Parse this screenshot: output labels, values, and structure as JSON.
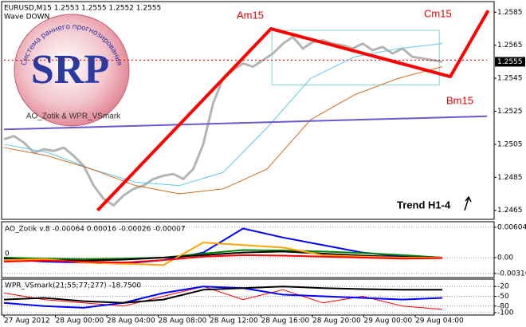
{
  "logo": {
    "title": "SRP",
    "ring_text": "Система раннего прогнозирования",
    "credit": "AO_Zotik & WPR_VSmark"
  },
  "annotations": {
    "a": "Am15",
    "b": "Bm15",
    "c": "Cm15",
    "trend": "Trend H1-4"
  },
  "chart_data": [
    {
      "type": "line",
      "title": "EURUSD,M15  1.2553 1.2555 1.2552 1.2555",
      "subtitle": "Wave DOWN",
      "ylim": [
        1.2461,
        1.259
      ],
      "yticks": [
        1.2585,
        1.2565,
        1.2545,
        1.2525,
        1.2505,
        1.2485,
        1.2465
      ],
      "grid": false,
      "current_price": 1.2555,
      "box": {
        "x": [
          26.9,
          43.7
        ],
        "values": [
          1.2574,
          1.2541
        ],
        "color": "#7fd8d8"
      },
      "series": [
        {
          "color": "#b4b4b4",
          "line_width": 3,
          "values": [
            1.2508,
            1.251,
            1.2506,
            1.25,
            1.2502,
            1.2501,
            1.2503,
            1.2498,
            1.2492,
            1.248,
            1.2472,
            1.2468,
            1.2474,
            1.2478,
            1.248,
            1.2484,
            1.2486,
            1.2487,
            1.2484,
            1.249,
            1.2505,
            1.253,
            1.2545,
            1.255,
            1.2554,
            1.2552,
            1.2556,
            1.256,
            1.2566,
            1.257,
            1.2563,
            1.2567,
            1.2568,
            1.2566,
            1.2565,
            1.2563,
            1.2566,
            1.2562,
            1.2564,
            1.256,
            1.2563,
            1.2558,
            1.2557,
            1.2556,
            1.2555
          ]
        },
        {
          "color": "#5fc8e8",
          "line_width": 1,
          "values": [
            1.2505,
            1.25,
            1.249,
            1.2482,
            1.248,
            1.2488,
            1.2515,
            1.2545,
            1.2558,
            1.2563,
            1.2566
          ]
        },
        {
          "color": "#d2691e",
          "line_width": 1,
          "values": [
            1.2503,
            1.2498,
            1.249,
            1.248,
            1.2475,
            1.2478,
            1.249,
            1.252,
            1.2535,
            1.2545,
            1.2552
          ]
        },
        {
          "color": "#6a5acd",
          "line_width": 2,
          "x": [
            0,
            48.5
          ],
          "values": [
            1.2514,
            1.2522
          ]
        },
        {
          "color": "#c00000",
          "line_width": 1,
          "dashed": true,
          "x": [
            0,
            48.5
          ],
          "values": [
            1.2556,
            1.2556
          ]
        },
        {
          "color": "#ff0000",
          "line_width": 4,
          "x": [
            9.4,
            26.8,
            44.8,
            48.6
          ],
          "values": [
            1.2465,
            1.2575,
            1.2546,
            1.2586
          ]
        }
      ]
    },
    {
      "type": "line",
      "title": "AO_Zotik v.8 -0.00064 0.00016 -0.00026 -0.00007",
      "level_label": "0",
      "ylim": [
        -0.00366,
        0.00683
      ],
      "yticks": [
        0.00604,
        {
          "value": 0,
          "label": "0.00"
        },
        -0.00316
      ],
      "grid": true,
      "series": [
        {
          "color": "#0000ff",
          "line_width": 2,
          "values": [
            -0.0003,
            -0.0008,
            -0.001,
            -0.0012,
            -0.0005,
            0.001,
            0.0058,
            0.004,
            0.0025,
            0.001,
            0.0002,
            0.0
          ]
        },
        {
          "color": "#008000",
          "line_width": 2,
          "values": [
            0.0,
            -0.0002,
            -0.0003,
            -0.0002,
            0.0,
            0.0008,
            0.0015,
            0.0014,
            0.0012,
            0.0009,
            0.0005,
            0.0
          ]
        },
        {
          "color": "#000000",
          "line_width": 2,
          "values": [
            -0.0002,
            -0.0005,
            -0.0006,
            -0.0004,
            0.0,
            0.0005,
            0.001,
            0.0012,
            0.0008,
            0.0004,
            0.0001,
            0.0
          ]
        },
        {
          "color": "#ffa500",
          "line_width": 2,
          "values": [
            -0.0005,
            -0.0003,
            -0.001,
            -0.0012,
            -0.0015,
            0.003,
            0.0025,
            0.002,
            0.0005,
            0.0002,
            0.0,
            0.0
          ]
        },
        {
          "color": "#ff0000",
          "line_width": 2,
          "values": [
            -0.0008,
            -0.0006,
            -0.0008,
            -0.001,
            -0.0005,
            0.0002,
            0.0005,
            0.0004,
            0.0002,
            0.0,
            -0.0002,
            -0.0001
          ]
        }
      ]
    },
    {
      "type": "line",
      "title": "WPR_VSmark(21;55;77;277) -18.7500",
      "ylim": [
        -100,
        0
      ],
      "yticks": [
        -20,
        -50,
        -80,
        -100
      ],
      "grid": true,
      "time_labels": [
        "27 Aug 2012",
        "28 Aug 00:00",
        "28 Aug 04:00",
        "28 Aug 08:00",
        "28 Aug 12:00",
        "28 Aug 16:00",
        "28 Aug 20:00",
        "29 Aug 00:00",
        "29 Aug 04:00"
      ],
      "series": [
        {
          "color": "#ff0000",
          "line_width": 1,
          "values": [
            -40,
            -60,
            -70,
            -80,
            -50,
            -20,
            -60,
            -30,
            -70,
            -50,
            -80,
            -90
          ]
        },
        {
          "color": "#0000ff",
          "line_width": 2,
          "values": [
            -70,
            -80,
            -85,
            -70,
            -40,
            -20,
            -25,
            -45,
            -50,
            -55,
            -60,
            -55
          ]
        },
        {
          "color": "#000000",
          "line_width": 2,
          "values": [
            -60,
            -55,
            -65,
            -70,
            -60,
            -30,
            -25,
            -20,
            -25,
            -28,
            -30,
            -30
          ]
        }
      ]
    }
  ]
}
